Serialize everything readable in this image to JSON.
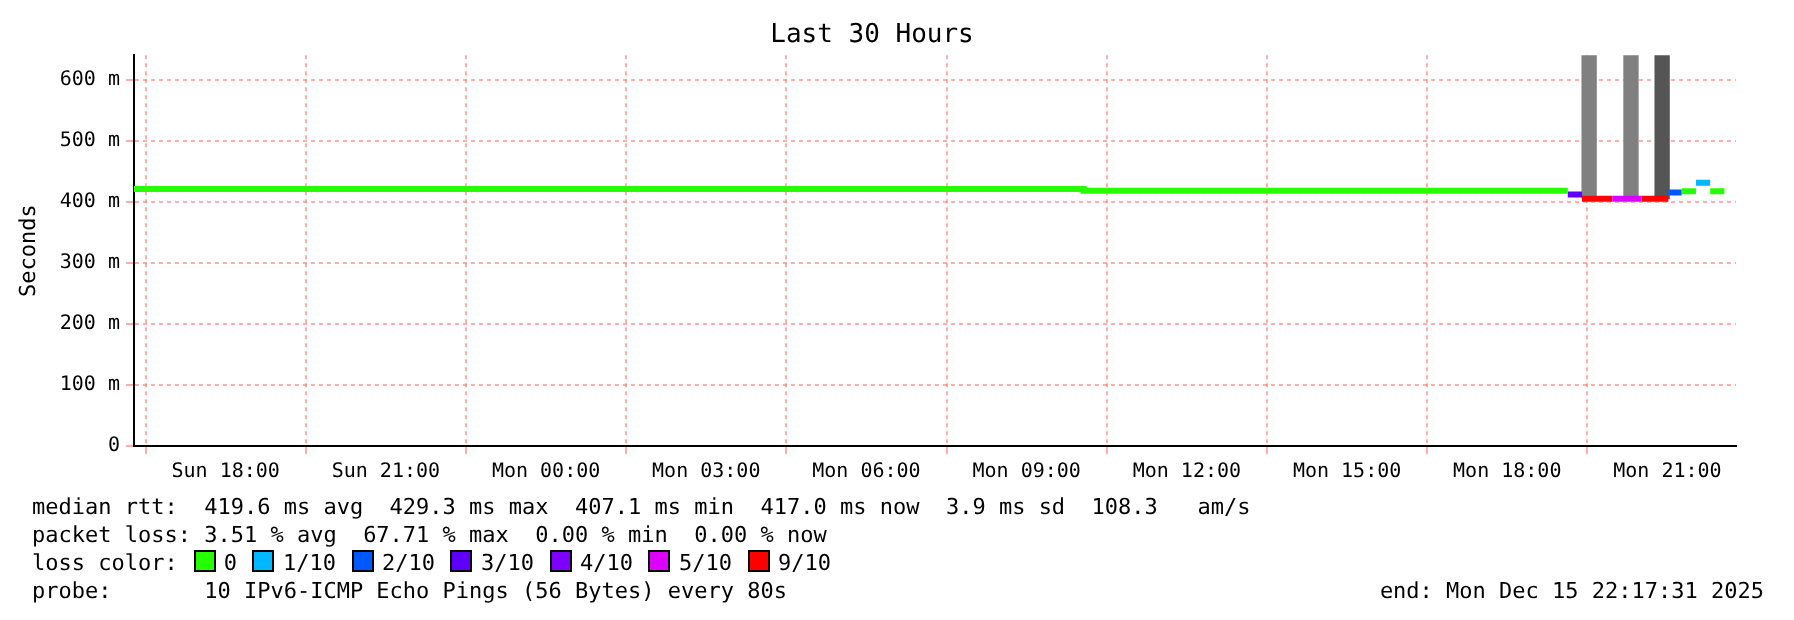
{
  "chart_data": {
    "type": "step",
    "title": "Last 30 Hours",
    "ylabel": "Seconds",
    "legend_title": "loss color:",
    "legend": "bottom",
    "grid": true,
    "line_style": "solid",
    "marker": "none",
    "xlim": [
      "2025-12-14T16:17",
      "2025-12-15T22:17"
    ],
    "xticks": [
      {
        "value": "2025-12-14T18:00",
        "label": "Sun 18:00"
      },
      {
        "value": "2025-12-14T21:00",
        "label": "Sun 21:00"
      },
      {
        "value": "2025-12-15T00:00",
        "label": "Mon 00:00"
      },
      {
        "value": "2025-12-15T03:00",
        "label": "Mon 03:00"
      },
      {
        "value": "2025-12-15T06:00",
        "label": "Mon 06:00"
      },
      {
        "value": "2025-12-15T09:00",
        "label": "Mon 09:00"
      },
      {
        "value": "2025-12-15T12:00",
        "label": "Mon 12:00"
      },
      {
        "value": "2025-12-15T15:00",
        "label": "Mon 15:00"
      },
      {
        "value": "2025-12-15T18:00",
        "label": "Mon 18:00"
      },
      {
        "value": "2025-12-15T21:00",
        "label": "Mon 21:00"
      }
    ],
    "ylim": [
      0,
      640
    ],
    "yticks": [
      0,
      {
        "value": 100,
        "label": "100 m"
      },
      {
        "value": 200,
        "label": "200 m"
      },
      {
        "value": 300,
        "label": "300 m"
      },
      {
        "value": 400,
        "label": "400 m"
      },
      {
        "value": 500,
        "label": "500 m"
      },
      {
        "value": 600,
        "label": "600 m"
      }
    ],
    "series": [
      {
        "type": "bar",
        "colors": [
          "#808080",
          "#808080",
          "#555555"
        ],
        "x": [
          "2025-12-15T19:32",
          "2025-12-15T20:19",
          "2025-12-15T20:54"
        ],
        "base": [
          405,
          405,
          405
        ],
        "values": [
          235,
          235,
          235
        ]
      },
      {
        "name": "0",
        "color": "#26ff00",
        "x": [
          "2025-12-14T16:17",
          "2025-12-15T10:04",
          "2025-12-15T10:04",
          "2025-12-15T19:08",
          "2025-12-15T19:12",
          "2025-12-15T21:16",
          "2025-12-15T21:32",
          "2025-12-15T21:36",
          "2025-12-15T21:48",
          "2025-12-15T22:04"
        ],
        "values": [
          421,
          421,
          418,
          418,
          null,
          417,
          417,
          null,
          417,
          417
        ]
      },
      {
        "name": "1/10",
        "color": "#00b8ff",
        "x": [
          "2025-12-15T21:32",
          "2025-12-15T21:48"
        ],
        "values": [
          431,
          431
        ]
      },
      {
        "name": "2/10",
        "color": "#0059ff",
        "x": [
          "2025-12-15T21:01",
          "2025-12-15T21:16"
        ],
        "values": [
          415,
          415
        ]
      },
      {
        "name": "3/10",
        "color": "#5e00ff",
        "x": [
          "2025-12-15T19:08",
          "2025-12-15T19:24"
        ],
        "values": [
          412,
          412
        ]
      },
      {
        "name": "4/10",
        "color": "#7e00ff"
      },
      {
        "name": "5/10",
        "color": "#dd00ff",
        "x": [
          "2025-12-15T19:58",
          "2025-12-15T20:31"
        ],
        "values": [
          405,
          405
        ]
      },
      {
        "name": "9/10",
        "color": "#ff0000",
        "x": [
          "2025-12-15T19:24",
          "2025-12-15T19:58",
          "2025-12-15T20:00",
          "2025-12-15T20:31",
          "2025-12-15T21:01"
        ],
        "values": [
          405,
          405,
          null,
          405,
          405
        ]
      }
    ],
    "annotations": [
      "median rtt:  419.6 ms avg  429.3 ms max  407.1 ms min  417.0 ms now  3.9 ms sd  108.3   am/s",
      "packet loss: 3.51 % avg  67.71 % max  0.00 % min  0.00 % now",
      "probe:       10 IPv6-ICMP Echo Pings (56 Bytes) every 80s",
      "end: Mon Dec 15 22:17:31 2025"
    ]
  }
}
